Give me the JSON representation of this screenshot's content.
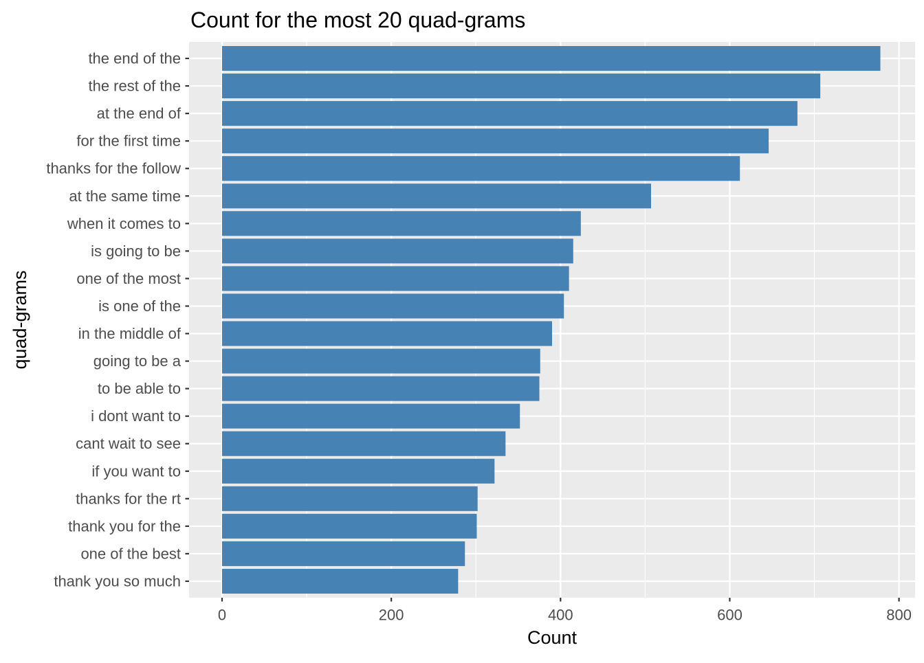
{
  "chart_data": {
    "type": "bar",
    "orientation": "horizontal",
    "title": "Count for the most 20 quad-grams",
    "xlabel": "Count",
    "ylabel": "quad-grams",
    "categories": [
      "the end of the",
      "the rest of the",
      "at the end of",
      "for the first time",
      "thanks for the follow",
      "at the same time",
      "when it comes to",
      "is going to be",
      "one of the most",
      "is one of the",
      "in the middle of",
      "going to be a",
      "to be able to",
      "i dont want to",
      "cant wait to see",
      "if you want to",
      "thanks for the rt",
      "thank you for the",
      "one of the best",
      "thank you so much"
    ],
    "values": [
      778,
      707,
      680,
      646,
      612,
      507,
      424,
      415,
      410,
      404,
      390,
      376,
      375,
      352,
      335,
      322,
      302,
      301,
      287,
      279
    ],
    "xlim": [
      -39,
      819
    ],
    "xticks": [
      0,
      200,
      400,
      600,
      800
    ],
    "xtick_labels": [
      "0",
      "200",
      "400",
      "600",
      "800"
    ],
    "grid": true,
    "bar_color": "#4682B4",
    "panel_background": "#EBEBEB",
    "grid_color": "#FFFFFF"
  }
}
